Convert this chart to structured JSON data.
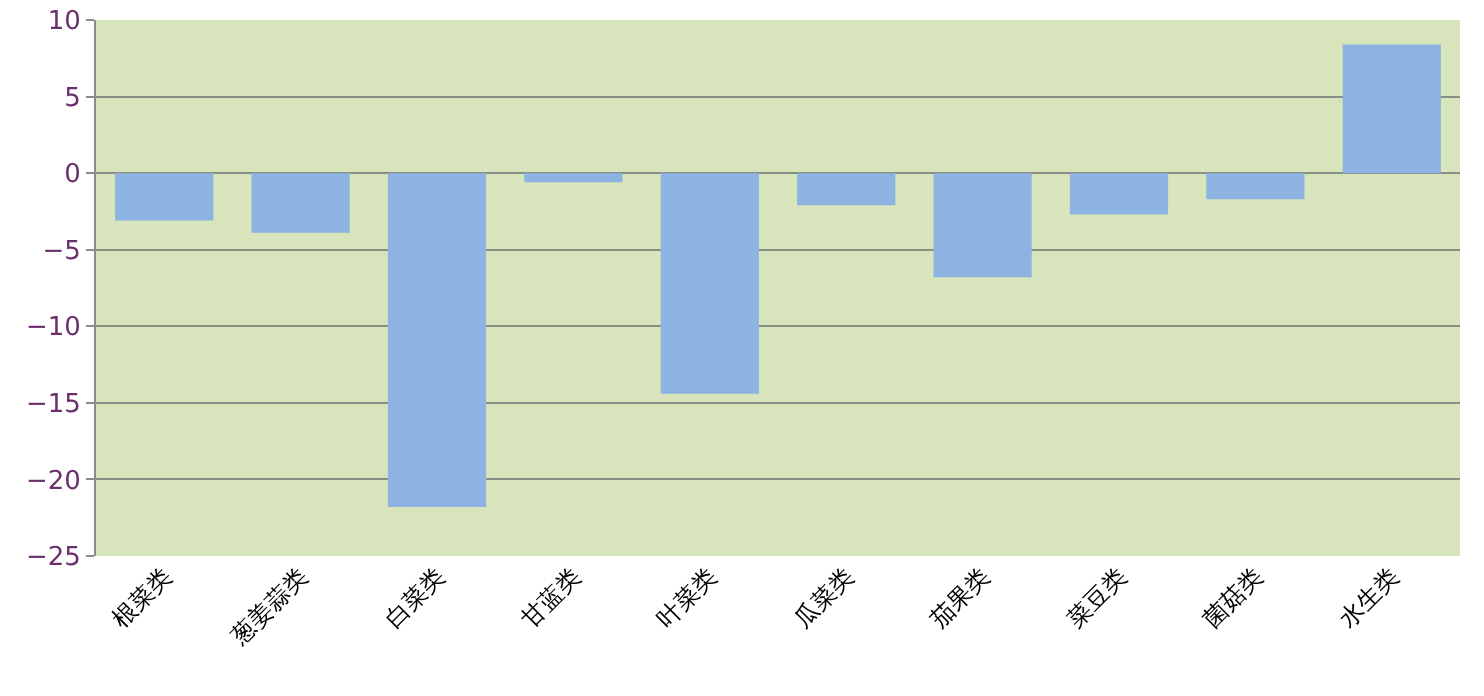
{
  "chart_data": {
    "type": "bar",
    "categories": [
      "根菜类",
      "葱姜蒜类",
      "白菜类",
      "甘蓝类",
      "叶菜类",
      "瓜菜类",
      "茄果类",
      "菜豆类",
      "菌菇类",
      "水生类"
    ],
    "values": [
      -3.1,
      -3.9,
      -21.8,
      -0.6,
      -14.4,
      -2.1,
      -6.8,
      -2.7,
      -1.7,
      8.4
    ],
    "color": "#8db3e2",
    "ylim": [
      -25,
      10
    ],
    "yticks": [
      -25,
      -20,
      -15,
      -10,
      -5,
      0,
      5,
      10
    ],
    "grid": "y"
  }
}
